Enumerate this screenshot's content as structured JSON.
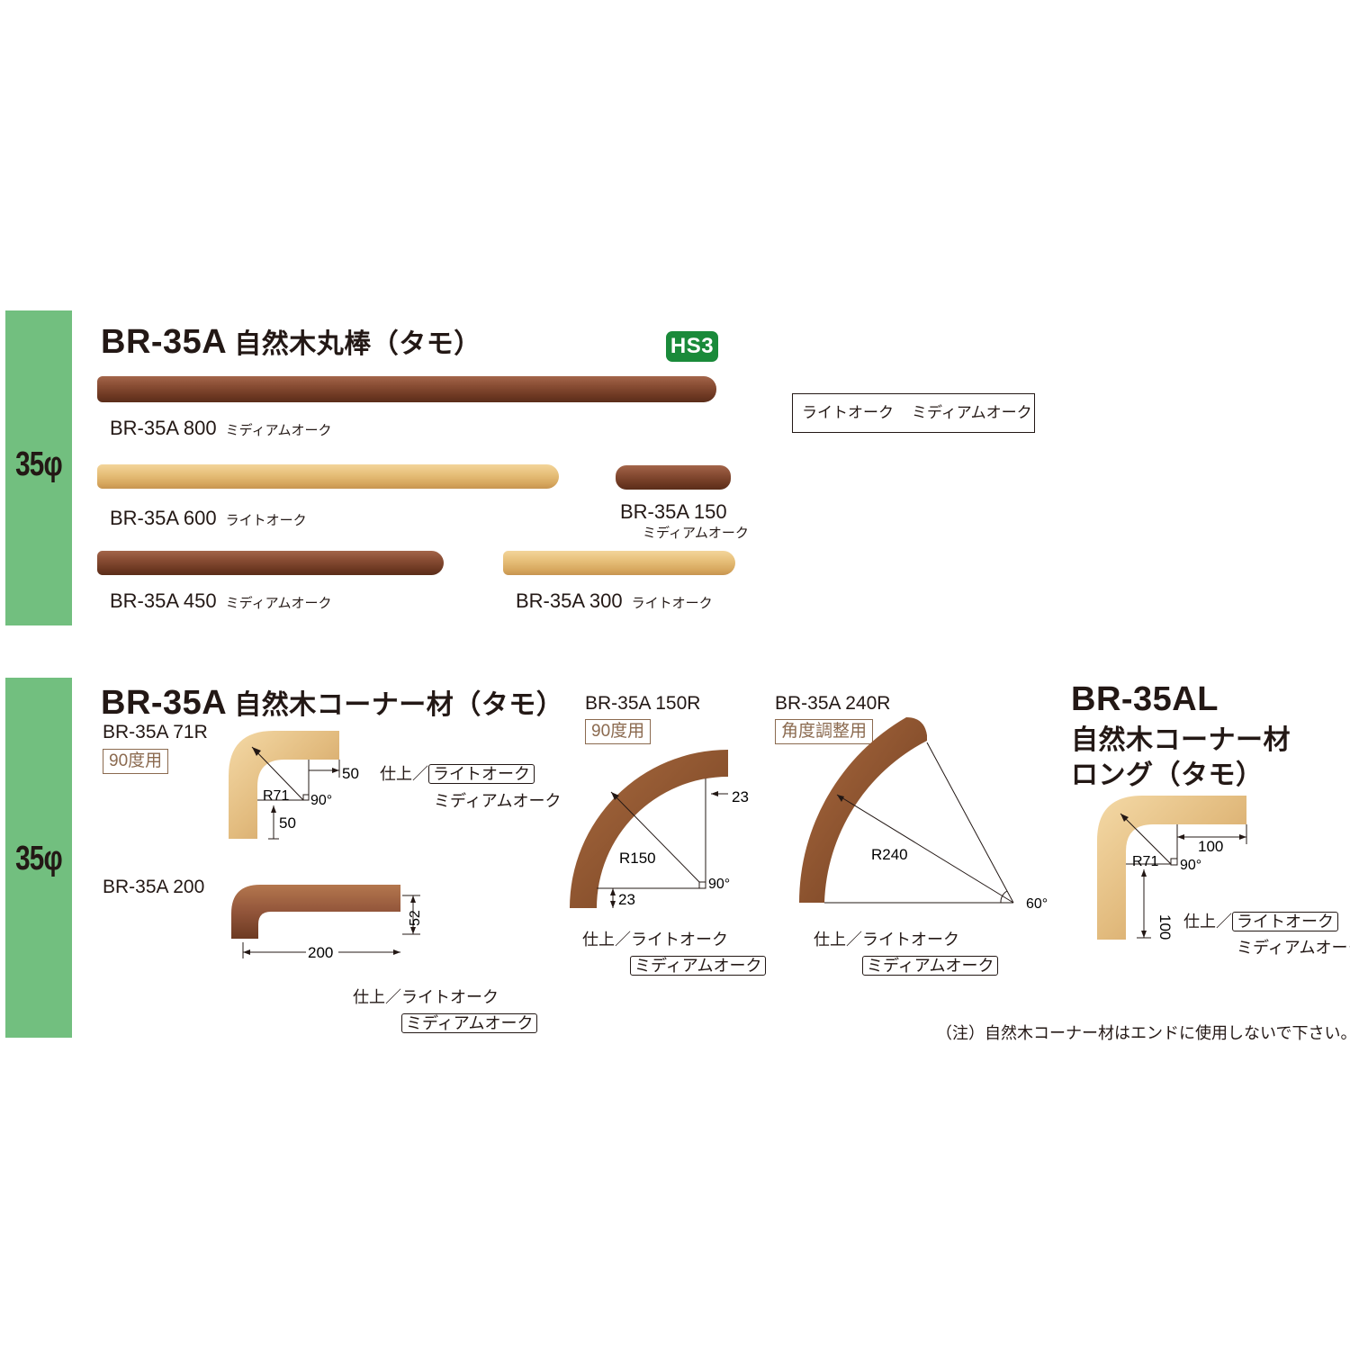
{
  "hs3_badge": "HS3",
  "legend": {
    "light_oak": "ライトオーク",
    "medium_oak": "ミディアムオーク"
  },
  "section1": {
    "band_label": "35φ",
    "model": "BR-35A",
    "title_jp": "自然木丸棒（タモ）",
    "bars": [
      {
        "model": "BR-35A 800",
        "finish": "ミディアムオーク"
      },
      {
        "model": "BR-35A 600",
        "finish": "ライトオーク"
      },
      {
        "model": "BR-35A 150",
        "finish": "ミディアムオーク"
      },
      {
        "model": "BR-35A 450",
        "finish": "ミディアムオーク"
      },
      {
        "model": "BR-35A 300",
        "finish": "ライトオーク"
      }
    ]
  },
  "section2": {
    "band_label": "35φ",
    "model": "BR-35A",
    "title_jp": "自然木コーナー材（タモ）",
    "items": {
      "r71": {
        "model": "BR-35A 71R",
        "usage": "90度用",
        "finish_prefix": "仕上／",
        "finish_boxed": "ライトオーク",
        "finish_other": "ミディアムオーク",
        "dims": {
          "d1": "50",
          "d2": "50",
          "radius": "R71",
          "angle": "90°"
        }
      },
      "s200": {
        "model": "BR-35A 200",
        "finish_prefix": "仕上／",
        "finish_plain": "ライトオーク",
        "finish_boxed": "ミディアムオーク",
        "dims": {
          "length": "200",
          "height": "52"
        }
      },
      "r150": {
        "model": "BR-35A 150R",
        "usage": "90度用",
        "finish_prefix": "仕上／",
        "finish_plain": "ライトオーク",
        "finish_boxed": "ミディアムオーク",
        "dims": {
          "d1": "23",
          "d2": "23",
          "radius": "R150",
          "angle": "90°"
        }
      },
      "r240": {
        "model": "BR-35A 240R",
        "usage": "角度調整用",
        "finish_prefix": "仕上／",
        "finish_plain": "ライトオーク",
        "finish_boxed": "ミディアムオーク",
        "dims": {
          "radius": "R240",
          "angle": "60°"
        }
      },
      "al": {
        "model": "BR-35AL",
        "title_line1": "自然木コーナー材",
        "title_line2": "ロング（タモ）",
        "finish_prefix": "仕上／",
        "finish_boxed": "ライトオーク",
        "finish_other": "ミディアムオーク",
        "dims": {
          "d1": "100",
          "d2": "100",
          "radius": "R71",
          "angle": "90°"
        }
      }
    },
    "note": "（注）自然木コーナー材はエンドに使用しないで下さい。"
  },
  "colors": {
    "band": "#72bf7f",
    "hs3": "#1a8a3a",
    "medium_oak": "#8a4e35",
    "light_oak": "#e7c07a",
    "usage_border": "#8b6a4f"
  }
}
